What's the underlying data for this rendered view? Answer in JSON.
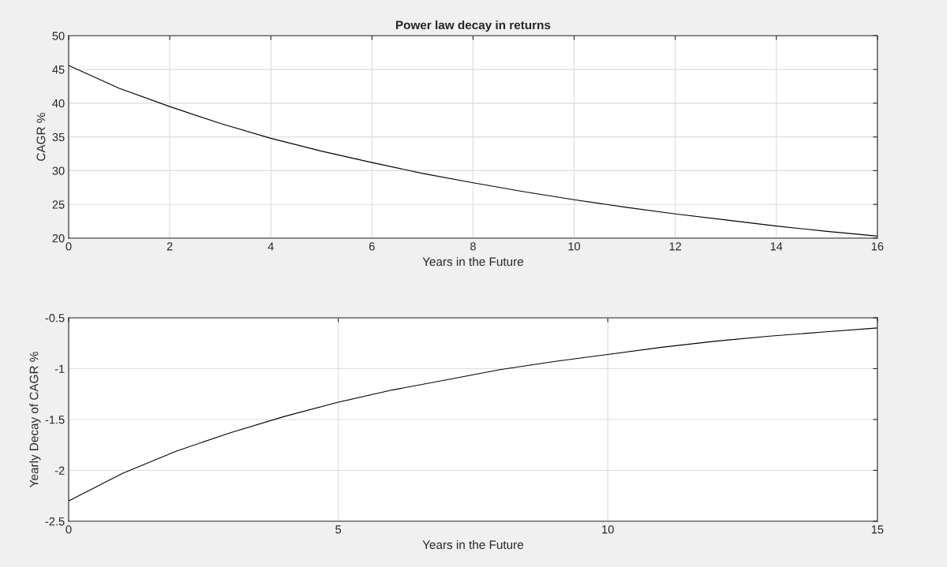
{
  "chart_data": [
    {
      "type": "line",
      "title": "Power law decay in returns",
      "xlabel": "Years in the Future",
      "ylabel": "CAGR %",
      "x": [
        0,
        1,
        2,
        3,
        4,
        5,
        6,
        7,
        8,
        9,
        10,
        11,
        12,
        13,
        14,
        15,
        16
      ],
      "series": [
        {
          "color": "#000000",
          "values": [
            45.6,
            42.2,
            39.5,
            37.0,
            34.8,
            32.9,
            31.2,
            29.6,
            28.2,
            26.9,
            25.7,
            24.6,
            23.6,
            22.7,
            21.8,
            21.0,
            20.3
          ]
        }
      ],
      "xlim": [
        0,
        16
      ],
      "xticks": [
        0,
        2,
        4,
        6,
        8,
        10,
        12,
        14,
        16
      ],
      "ylim": [
        20,
        50
      ],
      "yticks": [
        20,
        25,
        30,
        35,
        40,
        45,
        50
      ],
      "grid": true,
      "legend": false,
      "marker": "none",
      "line_style": "solid"
    },
    {
      "type": "line",
      "xlabel": "Years in the Future",
      "ylabel": "Yearly Decay of CAGR %",
      "x": [
        0,
        1,
        2,
        3,
        4,
        5,
        6,
        7,
        8,
        9,
        10,
        11,
        12,
        13,
        14,
        15
      ],
      "series": [
        {
          "color": "#000000",
          "values": [
            -2.3,
            -2.03,
            -1.81,
            -1.63,
            -1.47,
            -1.33,
            -1.21,
            -1.11,
            -1.01,
            -0.93,
            -0.86,
            -0.79,
            -0.73,
            -0.68,
            -0.64,
            -0.6
          ]
        }
      ],
      "xlim": [
        0,
        15
      ],
      "xticks": [
        0,
        5,
        10,
        15
      ],
      "ylim": [
        -2.5,
        -0.5
      ],
      "yticks": [
        {
          "value": -2.5,
          "label": "-2.5"
        },
        {
          "value": -2,
          "label": "-2"
        },
        {
          "value": -1.5,
          "label": "-1.5"
        },
        {
          "value": -1,
          "label": "-1"
        },
        {
          "value": -0.5,
          "label": "-0.5"
        }
      ],
      "grid": true,
      "legend": false,
      "marker": "none",
      "line_style": "solid"
    }
  ]
}
